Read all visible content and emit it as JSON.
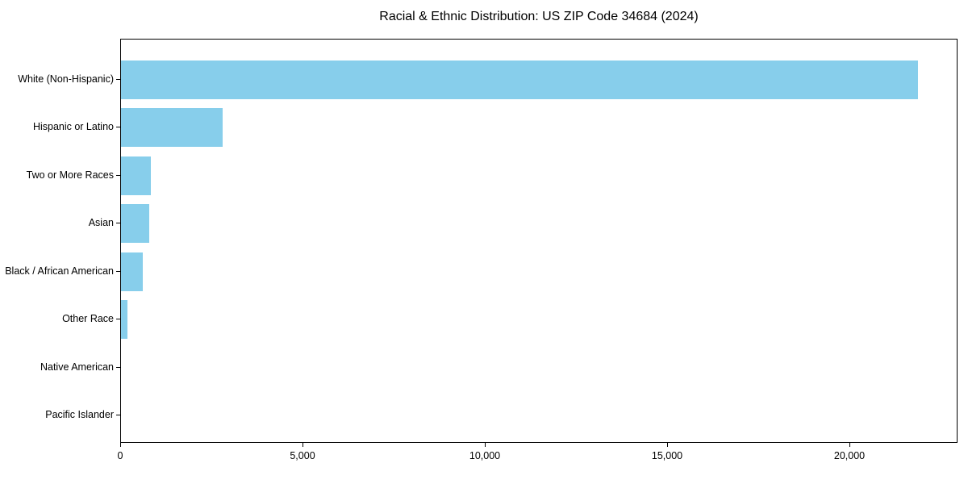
{
  "chart_data": {
    "type": "bar",
    "orientation": "horizontal",
    "title": "Racial & Ethnic Distribution: US ZIP Code 34684 (2024)",
    "categories": [
      "White (Non-Hispanic)",
      "Hispanic or Latino",
      "Two or More Races",
      "Asian",
      "Black / African American",
      "Other Race",
      "Native American",
      "Pacific Islander"
    ],
    "values": [
      21850,
      2790,
      810,
      780,
      590,
      170,
      0,
      0
    ],
    "xlabel": "",
    "ylabel": "",
    "xlim": [
      0,
      22965
    ],
    "x_ticks": [
      0,
      5000,
      10000,
      15000,
      20000
    ],
    "x_tick_labels": [
      "0",
      "5,000",
      "10,000",
      "15,000",
      "20,000"
    ],
    "bar_color": "#87CEEB",
    "axis_color": "#000000",
    "text_color": "#000000",
    "grid": false,
    "legend": "none"
  }
}
